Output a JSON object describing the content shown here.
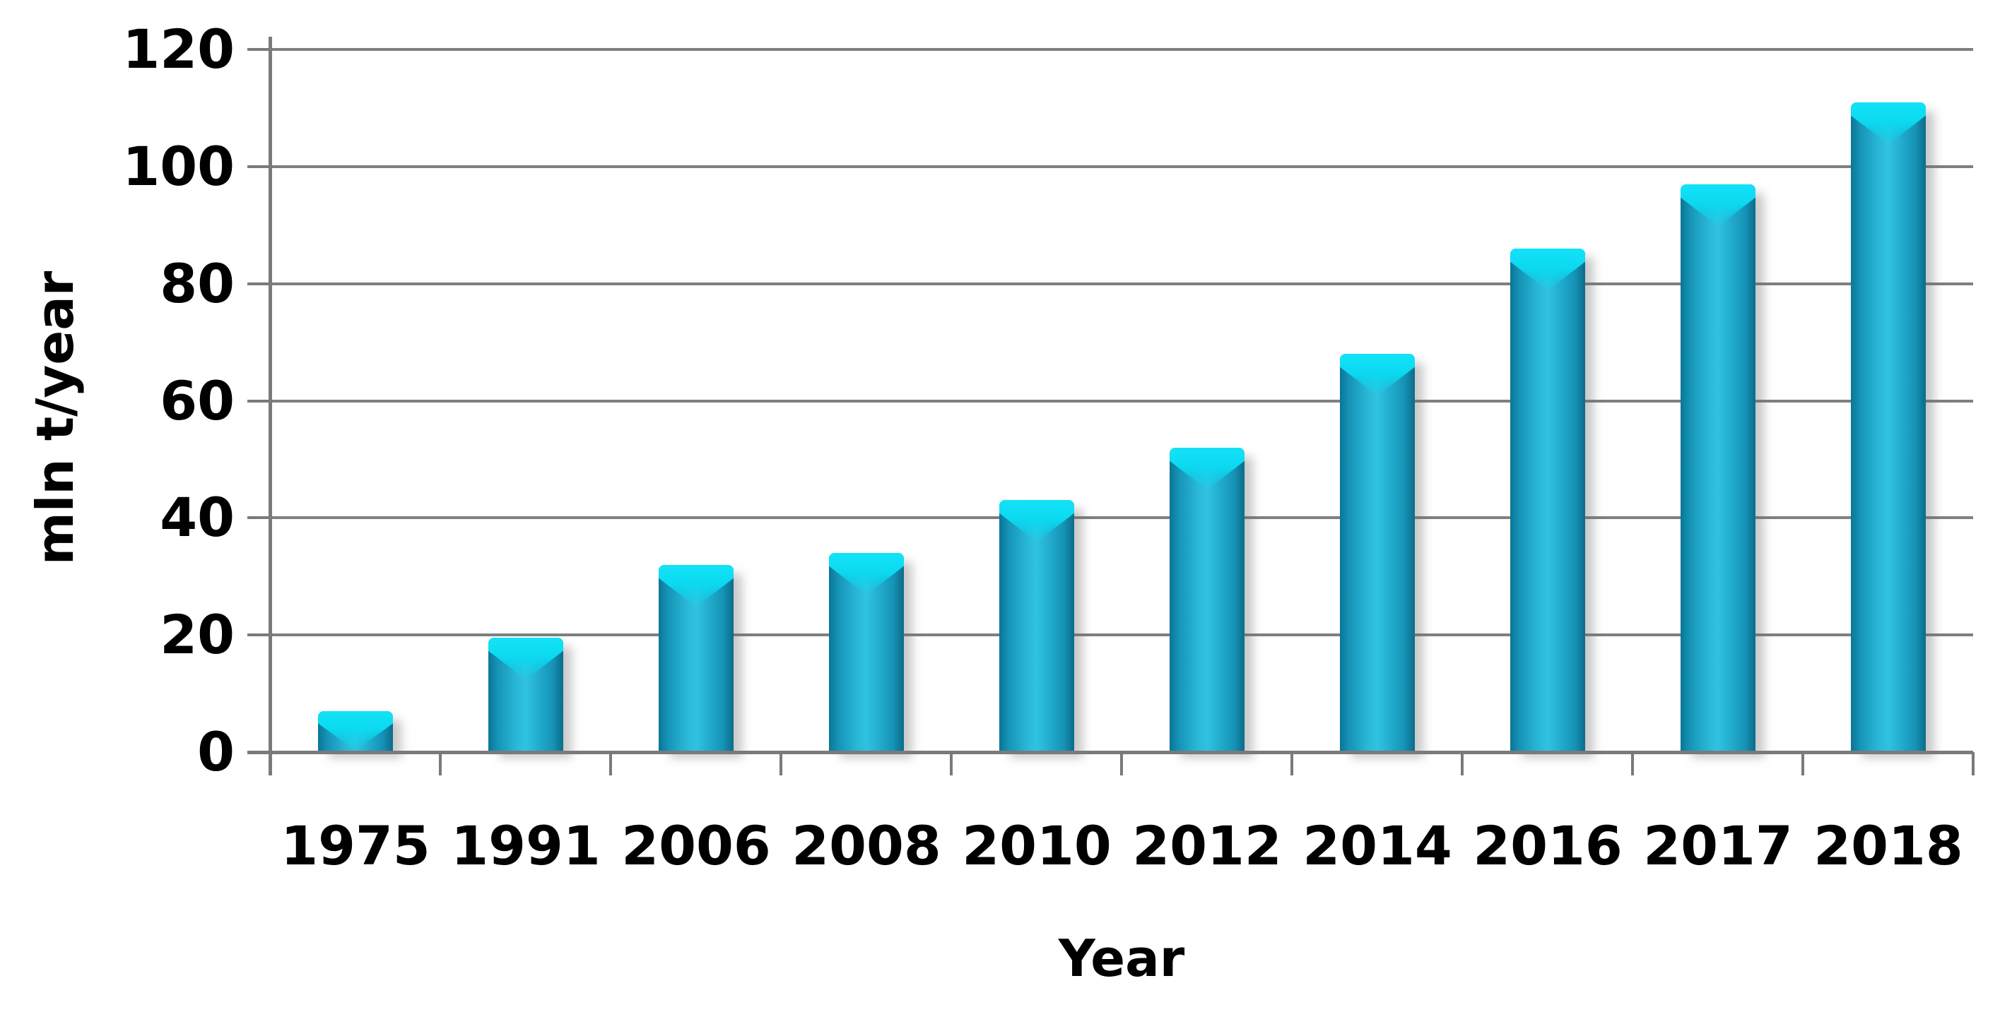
{
  "chart_data": {
    "type": "bar",
    "title": "",
    "categories": [
      "1975",
      "1991",
      "2006",
      "2008",
      "2010",
      "2012",
      "2014",
      "2016",
      "2017",
      "2018"
    ],
    "values": [
      7,
      19.5,
      32,
      34,
      43,
      52,
      68,
      86,
      97,
      111
    ],
    "xlabel": "Year",
    "ylabel": "mln t/year",
    "ylim": [
      0,
      120
    ],
    "ytick_step": 20,
    "yticks": [
      0,
      20,
      40,
      60,
      80,
      100,
      120
    ],
    "grid": true,
    "legend": false,
    "colors": {
      "bar_main": "#1ba4c7",
      "bar_light": "#31c2e0",
      "bar_dark": "#0c7596",
      "bar_highlight": "#0cd9f0",
      "gridline": "#7f7f7f",
      "axis": "#7a7a7a",
      "text": "#000000",
      "background": "#ffffff"
    }
  }
}
